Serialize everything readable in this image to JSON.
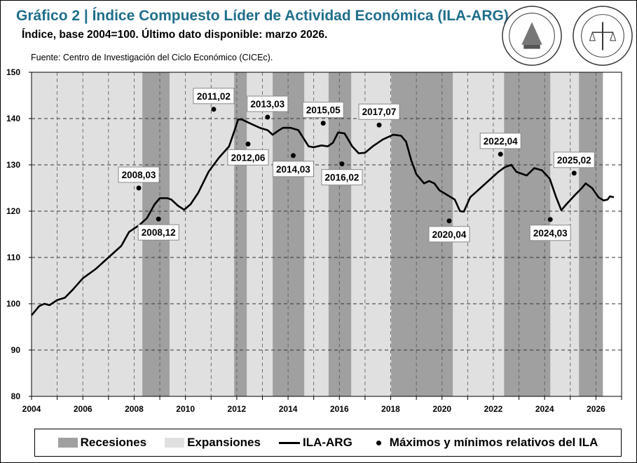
{
  "header": {
    "title": "Gráfico 2 | Índice Compuesto Líder de Actividad Económica (ILA-ARG).",
    "subtitle": "Índice, base 2004=100. Último dato disponible: marzo 2026.",
    "source": "Fuente: Centro de Investigación del Ciclo Económico (CICEc).",
    "logos": [
      "BOLSA DE COMERCIO DE SANTA FE",
      "BOLSA DE COMERCIO DE ROSARIO"
    ]
  },
  "colors": {
    "recession": "#a0a0a0",
    "expansion": "#e0e0e0",
    "line": "#000000",
    "title": "#1f6f8b"
  },
  "chart_data": {
    "type": "line",
    "xlim": [
      2004,
      2027
    ],
    "ylim": [
      80,
      150
    ],
    "x_ticks": [
      "2004",
      "2006",
      "2008",
      "2010",
      "2012",
      "2014",
      "2016",
      "2018",
      "2020",
      "2022",
      "2024",
      "2026"
    ],
    "y_ticks": [
      "80",
      "90",
      "100",
      "110",
      "120",
      "130",
      "140",
      "150"
    ],
    "grid": true,
    "legend_position": "bottom",
    "legend": {
      "recessions": "Recesiones",
      "expansions": "Expansiones",
      "series": "ILA-ARG",
      "points": "Máximos y mínimos relativos del ILA"
    },
    "expansion_span": [
      2004.0,
      2026.27
    ],
    "recessions": [
      [
        2008.32,
        2009.38
      ],
      [
        2011.9,
        2012.39
      ],
      [
        2013.4,
        2014.63
      ],
      [
        2015.58,
        2016.46
      ],
      [
        2018.02,
        2020.42
      ],
      [
        2022.42,
        2024.22
      ],
      [
        2025.34,
        2026.27
      ]
    ],
    "series": [
      {
        "name": "ILA-ARG",
        "points": [
          [
            2004.0,
            97.5
          ],
          [
            2004.3,
            99.5
          ],
          [
            2004.5,
            100
          ],
          [
            2004.7,
            99.7
          ],
          [
            2005.0,
            100.8
          ],
          [
            2005.3,
            101.3
          ],
          [
            2005.6,
            103
          ],
          [
            2006.0,
            105.5
          ],
          [
            2006.5,
            107.5
          ],
          [
            2007.0,
            110
          ],
          [
            2007.5,
            112.5
          ],
          [
            2007.8,
            115.5
          ],
          [
            2008.2,
            117
          ],
          [
            2008.5,
            118.5
          ],
          [
            2008.8,
            121.5
          ],
          [
            2009.0,
            122.8
          ],
          [
            2009.3,
            122.8
          ],
          [
            2009.45,
            122.5
          ],
          [
            2009.7,
            121.2
          ],
          [
            2009.95,
            120.3
          ],
          [
            2010.2,
            121.5
          ],
          [
            2010.5,
            124
          ],
          [
            2010.9,
            128.5
          ],
          [
            2011.3,
            131.5
          ],
          [
            2011.7,
            134
          ],
          [
            2011.95,
            138
          ],
          [
            2012.05,
            139.8
          ],
          [
            2012.2,
            139.8
          ],
          [
            2012.5,
            139
          ],
          [
            2012.9,
            138
          ],
          [
            2013.2,
            137.5
          ],
          [
            2013.4,
            136.5
          ],
          [
            2013.6,
            137.3
          ],
          [
            2013.8,
            138
          ],
          [
            2014.1,
            138
          ],
          [
            2014.4,
            137.5
          ],
          [
            2014.8,
            134
          ],
          [
            2015.0,
            133.8
          ],
          [
            2015.3,
            134.2
          ],
          [
            2015.55,
            134.0
          ],
          [
            2015.75,
            134.8
          ],
          [
            2015.95,
            137
          ],
          [
            2016.2,
            136.8
          ],
          [
            2016.5,
            134
          ],
          [
            2016.75,
            132.5
          ],
          [
            2017.0,
            132.6
          ],
          [
            2017.3,
            134
          ],
          [
            2017.7,
            135.5
          ],
          [
            2018.1,
            136.5
          ],
          [
            2018.4,
            136.3
          ],
          [
            2018.6,
            135
          ],
          [
            2018.8,
            131
          ],
          [
            2019.0,
            128
          ],
          [
            2019.3,
            126
          ],
          [
            2019.5,
            126.5
          ],
          [
            2019.7,
            126
          ],
          [
            2019.9,
            124.5
          ],
          [
            2020.2,
            123.5
          ],
          [
            2020.5,
            122.5
          ],
          [
            2020.7,
            120
          ],
          [
            2020.85,
            119.9
          ],
          [
            2021.1,
            123
          ],
          [
            2021.5,
            125
          ],
          [
            2021.9,
            127
          ],
          [
            2022.2,
            128.5
          ],
          [
            2022.45,
            129.5
          ],
          [
            2022.7,
            130
          ],
          [
            2022.9,
            128.5
          ],
          [
            2023.3,
            127.7
          ],
          [
            2023.6,
            129.3
          ],
          [
            2023.9,
            128.8
          ],
          [
            2024.2,
            127
          ],
          [
            2024.45,
            123
          ],
          [
            2024.65,
            120.2
          ],
          [
            2024.85,
            121.5
          ],
          [
            2025.15,
            123.3
          ],
          [
            2025.45,
            125
          ],
          [
            2025.6,
            126
          ],
          [
            2025.85,
            125
          ],
          [
            2026.1,
            123
          ],
          [
            2026.3,
            122.3
          ],
          [
            2026.45,
            122.5
          ],
          [
            2026.55,
            123.2
          ],
          [
            2026.7,
            123.0
          ]
        ]
      }
    ],
    "turning_points": [
      {
        "label": "2008,03",
        "x": 2008.18,
        "y": 125.0,
        "kind": "max"
      },
      {
        "label": "2008,12",
        "x": 2008.95,
        "y": 118.3,
        "kind": "min"
      },
      {
        "label": "2011,02",
        "x": 2011.1,
        "y": 142.0,
        "kind": "max"
      },
      {
        "label": "2012,06",
        "x": 2012.44,
        "y": 134.5,
        "kind": "min"
      },
      {
        "label": "2013,03",
        "x": 2013.2,
        "y": 140.3,
        "kind": "max"
      },
      {
        "label": "2014,03",
        "x": 2014.2,
        "y": 132.0,
        "kind": "min"
      },
      {
        "label": "2015,05",
        "x": 2015.37,
        "y": 139.0,
        "kind": "max"
      },
      {
        "label": "2016,02",
        "x": 2016.1,
        "y": 130.2,
        "kind": "min"
      },
      {
        "label": "2017,07",
        "x": 2017.55,
        "y": 138.6,
        "kind": "max"
      },
      {
        "label": "2020,04",
        "x": 2020.28,
        "y": 117.9,
        "kind": "min"
      },
      {
        "label": "2022,04",
        "x": 2022.28,
        "y": 132.3,
        "kind": "max"
      },
      {
        "label": "2024,03",
        "x": 2024.22,
        "y": 118.2,
        "kind": "min"
      },
      {
        "label": "2025,02",
        "x": 2025.15,
        "y": 128.2,
        "kind": "max"
      }
    ]
  }
}
